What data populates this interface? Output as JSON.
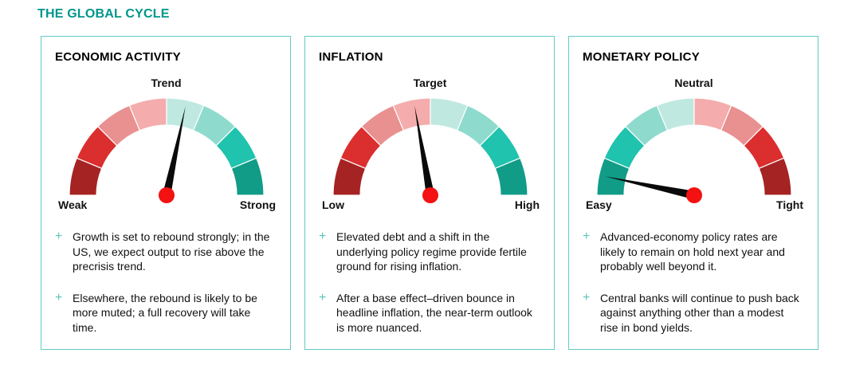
{
  "page": {
    "title": "THE GLOBAL CYCLE"
  },
  "ui": {
    "bullet_marker": "+"
  },
  "colors": {
    "title_accent": "#00968A",
    "card_border": "#62CBC4",
    "bullet_marker": "#5BC4BC",
    "needle": "#0A0A0A",
    "needle_hub": "#F31111",
    "segment_divider": "#FFFFFF"
  },
  "chart_data": [
    {
      "type": "gauge",
      "title": "ECONOMIC ACTIVITY",
      "arc_degrees": 180,
      "segments": 8,
      "top_label": "Trend",
      "left_label": "Weak",
      "right_label": "Strong",
      "needle_angle_deg_from_vertical": 12,
      "segment_colors": [
        "#A62323",
        "#DB2E2E",
        "#E99090",
        "#F5ACAC",
        "#BFE8E0",
        "#8EDBCE",
        "#1FC3AE",
        "#119C87"
      ],
      "bullets": [
        "Growth is set to rebound strongly; in the US, we expect output to rise above the precrisis trend.",
        "Elsewhere, the rebound is likely to be more muted; a full recovery will take time."
      ]
    },
    {
      "type": "gauge",
      "title": "INFLATION",
      "arc_degrees": 180,
      "segments": 8,
      "top_label": "Target",
      "left_label": "Low",
      "right_label": "High",
      "needle_angle_deg_from_vertical": -10,
      "segment_colors": [
        "#A62323",
        "#DB2E2E",
        "#E99090",
        "#F5ACAC",
        "#BFE8E0",
        "#8EDBCE",
        "#1FC3AE",
        "#119C87"
      ],
      "bullets": [
        "Elevated debt and a shift in the underlying policy regime provide fertile ground for rising inflation.",
        "After a base effect–driven bounce in headline inflation, the near-term outlook is more nuanced."
      ]
    },
    {
      "type": "gauge",
      "title": "MONETARY POLICY",
      "arc_degrees": 180,
      "segments": 8,
      "top_label": "Neutral",
      "left_label": "Easy",
      "right_label": "Tight",
      "needle_angle_deg_from_vertical": -78,
      "segment_colors": [
        "#119C87",
        "#1FC3AE",
        "#8EDBCE",
        "#BFE8E0",
        "#F5ACAC",
        "#E99090",
        "#DB2E2E",
        "#A62323"
      ],
      "bullets": [
        "Advanced-economy policy rates are likely to remain on hold next year and probably well beyond it.",
        "Central banks will continue to push back against anything other than a modest rise in bond yields."
      ]
    }
  ]
}
